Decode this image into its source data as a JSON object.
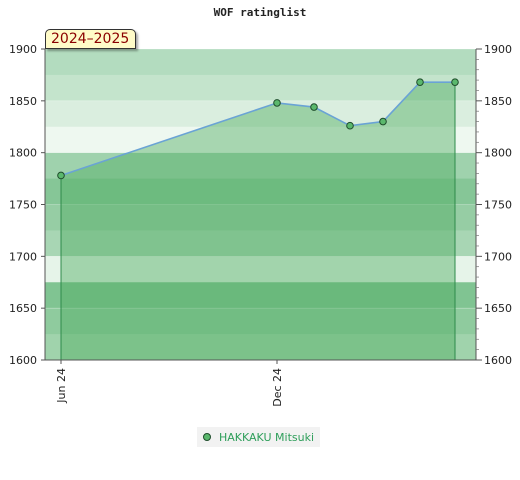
{
  "chart_data": {
    "type": "line",
    "title": "WOF ratinglist",
    "season": "2024–2025",
    "ylim": [
      1600,
      1900
    ],
    "y_ticks": [
      1600,
      1650,
      1700,
      1750,
      1800,
      1850,
      1900
    ],
    "x_tick_labels": [
      {
        "label": "Jun 24",
        "index": 0
      },
      {
        "label": "Dec 24",
        "index": 1
      }
    ],
    "series": [
      {
        "name": "HAKKAKU Mitsuki",
        "color": "#5bb86d",
        "line_color": "#6aa3d5",
        "fill_color": "#4fae62",
        "values": [
          1778,
          1848,
          1844,
          1826,
          1830,
          1868,
          1868
        ]
      }
    ],
    "grid": true,
    "legend": "bottom"
  }
}
